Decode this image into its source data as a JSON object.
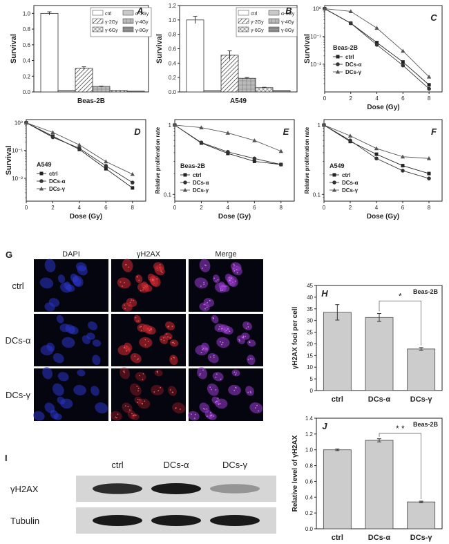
{
  "chart_data": [
    {
      "panel": "A",
      "type": "bar",
      "title": "",
      "xlabel": "Beas-2B",
      "ylabel": "Survival",
      "ylim": [
        0,
        1.1
      ],
      "yticks": [
        "0.0",
        "0.2",
        "0.4",
        "0.6",
        "0.8",
        "1.0"
      ],
      "legend": [
        "ctrl",
        "α-1Gy",
        "γ-2Gy",
        "γ-4Gy",
        "γ-6Gy",
        "γ-8Gy"
      ],
      "series": [
        {
          "name": "ctrl",
          "value": 1.0,
          "err": 0.02
        },
        {
          "name": "α-1Gy",
          "value": 0.02,
          "err": 0.002
        },
        {
          "name": "γ-2Gy",
          "value": 0.3,
          "err": 0.02
        },
        {
          "name": "γ-4Gy",
          "value": 0.07,
          "err": 0.005
        },
        {
          "name": "γ-6Gy",
          "value": 0.02,
          "err": 0.002
        },
        {
          "name": "γ-8Gy",
          "value": 0.01,
          "err": 0.001
        }
      ]
    },
    {
      "panel": "B",
      "type": "bar",
      "title": "",
      "xlabel": "A549",
      "ylabel": "Survival",
      "ylim": [
        0,
        1.2
      ],
      "yticks": [
        "0.0",
        "0.2",
        "0.4",
        "0.6",
        "0.8",
        "1.0",
        "1.2"
      ],
      "legend": [
        "ctrl",
        "α-1Gy",
        "γ-2Gy",
        "γ-4Gy",
        "γ-6Gy",
        "γ-8Gy"
      ],
      "series": [
        {
          "name": "ctrl",
          "value": 1.0,
          "err": 0.05
        },
        {
          "name": "α-1Gy",
          "value": 0.02,
          "err": 0.003
        },
        {
          "name": "γ-2Gy",
          "value": 0.51,
          "err": 0.06
        },
        {
          "name": "γ-4Gy",
          "value": 0.19,
          "err": 0.01
        },
        {
          "name": "γ-6Gy",
          "value": 0.06,
          "err": 0.005
        },
        {
          "name": "γ-8Gy",
          "value": 0.02,
          "err": 0.002
        }
      ]
    },
    {
      "panel": "C",
      "type": "line",
      "yscale": "log",
      "cell": "Beas-2B",
      "xlabel": "Dose (Gy)",
      "ylabel": "Survival",
      "xlim": [
        0,
        9
      ],
      "xticks": [
        "0",
        "2",
        "4",
        "6",
        "8"
      ],
      "ylim": [
        0.001,
        1.3
      ],
      "yticks": [
        "10⁰",
        "10⁻¹",
        "10⁻²"
      ],
      "x": [
        0,
        2,
        4,
        6,
        8
      ],
      "series": [
        {
          "name": "ctrl",
          "marker": "square",
          "values": [
            1.0,
            0.3,
            0.06,
            0.012,
            0.0018
          ]
        },
        {
          "name": "DCs-α",
          "marker": "circle",
          "values": [
            1.0,
            0.3,
            0.05,
            0.009,
            0.0013
          ]
        },
        {
          "name": "DCs-γ",
          "marker": "triangle",
          "values": [
            1.0,
            0.8,
            0.2,
            0.03,
            0.0035
          ]
        }
      ]
    },
    {
      "panel": "D",
      "type": "line",
      "yscale": "log",
      "cell": "A549",
      "xlabel": "Dose (Gy)",
      "ylabel": "Survival",
      "xlim": [
        0,
        9
      ],
      "xticks": [
        "0",
        "2",
        "4",
        "6",
        "8"
      ],
      "ylim": [
        0.0015,
        1.3
      ],
      "yticks": [
        "10⁰",
        "10⁻¹",
        "10⁻²"
      ],
      "x": [
        0,
        2,
        4,
        6,
        8
      ],
      "series": [
        {
          "name": "ctrl",
          "marker": "square",
          "values": [
            1.0,
            0.33,
            0.11,
            0.022,
            0.0045
          ]
        },
        {
          "name": "DCs-α",
          "marker": "circle",
          "values": [
            1.0,
            0.3,
            0.12,
            0.028,
            0.007
          ]
        },
        {
          "name": "DCs-γ",
          "marker": "triangle",
          "values": [
            1.0,
            0.45,
            0.16,
            0.04,
            0.014
          ]
        }
      ]
    },
    {
      "panel": "E",
      "type": "line",
      "yscale": "log",
      "cell": "Beas-2B",
      "xlabel": "Dose (Gy)",
      "ylabel": "Relative proliferation rate",
      "xlim": [
        0,
        9
      ],
      "xticks": [
        "0",
        "2",
        "4",
        "6",
        "8"
      ],
      "ylim": [
        0.08,
        1.2
      ],
      "yticks": [
        "1",
        "0.1"
      ],
      "x": [
        0,
        2,
        4,
        6,
        8
      ],
      "series": [
        {
          "name": "ctrl",
          "marker": "square",
          "values": [
            1.0,
            0.55,
            0.39,
            0.3,
            0.27
          ]
        },
        {
          "name": "DCs-α",
          "marker": "circle",
          "values": [
            1.0,
            0.56,
            0.41,
            0.33,
            0.27
          ]
        },
        {
          "name": "DCs-γ",
          "marker": "triangle",
          "values": [
            1.0,
            0.92,
            0.77,
            0.6,
            0.42
          ]
        }
      ]
    },
    {
      "panel": "F",
      "type": "line",
      "yscale": "log",
      "cell": "A549",
      "xlabel": "Dose (Gy)",
      "ylabel": "Relative proliferation rate",
      "xlim": [
        0,
        9
      ],
      "xticks": [
        "0",
        "2",
        "4",
        "6",
        "8"
      ],
      "ylim": [
        0.08,
        1.2
      ],
      "yticks": [
        "1",
        "0.1"
      ],
      "x": [
        0,
        2,
        4,
        6,
        8
      ],
      "series": [
        {
          "name": "ctrl",
          "marker": "square",
          "values": [
            1.0,
            0.58,
            0.38,
            0.26,
            0.2
          ]
        },
        {
          "name": "DCs-α",
          "marker": "circle",
          "values": [
            1.0,
            0.6,
            0.33,
            0.22,
            0.17
          ]
        },
        {
          "name": "DCs-γ",
          "marker": "triangle",
          "values": [
            1.0,
            0.7,
            0.46,
            0.35,
            0.33
          ]
        }
      ]
    },
    {
      "panel": "H",
      "type": "bar",
      "cell": "Beas-2B",
      "ylabel": "γH2AX foci per cell",
      "ylim": [
        0,
        45
      ],
      "yticks": [
        "0",
        "5",
        "10",
        "15",
        "20",
        "25",
        "30",
        "35",
        "40",
        "45"
      ],
      "categories": [
        "ctrl",
        "DCs-α",
        "DCs-γ"
      ],
      "values": [
        33.5,
        31.3,
        17.8
      ],
      "errors": [
        3.3,
        1.7,
        0.6
      ],
      "significance": "*"
    },
    {
      "panel": "J",
      "type": "bar",
      "cell": "Beas-2B",
      "ylabel": "Relative level of γH2AX",
      "ylim": [
        0,
        1.4
      ],
      "yticks": [
        "0.0",
        "0.2",
        "0.4",
        "0.6",
        "0.8",
        "1.0",
        "1.2",
        "1.4"
      ],
      "categories": [
        "ctrl",
        "DCs-α",
        "DCs-γ"
      ],
      "values": [
        1.0,
        1.12,
        0.34
      ],
      "errors": [
        0.01,
        0.02,
        0.01
      ],
      "significance": "* *"
    }
  ],
  "panel_g": {
    "letter": "G",
    "column_labels": [
      "DAPI",
      "γH2AX",
      "Merge"
    ],
    "row_labels": [
      "ctrl",
      "DCs-α",
      "DCs-γ"
    ]
  },
  "panel_i": {
    "letter": "I",
    "lane_labels": [
      "ctrl",
      "DCs-α",
      "DCs-γ"
    ],
    "row_labels": [
      "γH2AX",
      "Tubulin"
    ],
    "band_intensity": {
      "γH2AX": [
        0.9,
        1.0,
        0.35
      ],
      "Tubulin": [
        1.0,
        1.0,
        1.0
      ]
    }
  },
  "colors": {
    "axis": "#222222",
    "bar_gray": "#cccccc",
    "series_ctrl": "#222222",
    "series_alpha": "#333333",
    "series_gamma": "#555555",
    "dapi": "#2a34c8",
    "h2ax": "#c8262e",
    "merge": "#9b3ad0"
  }
}
